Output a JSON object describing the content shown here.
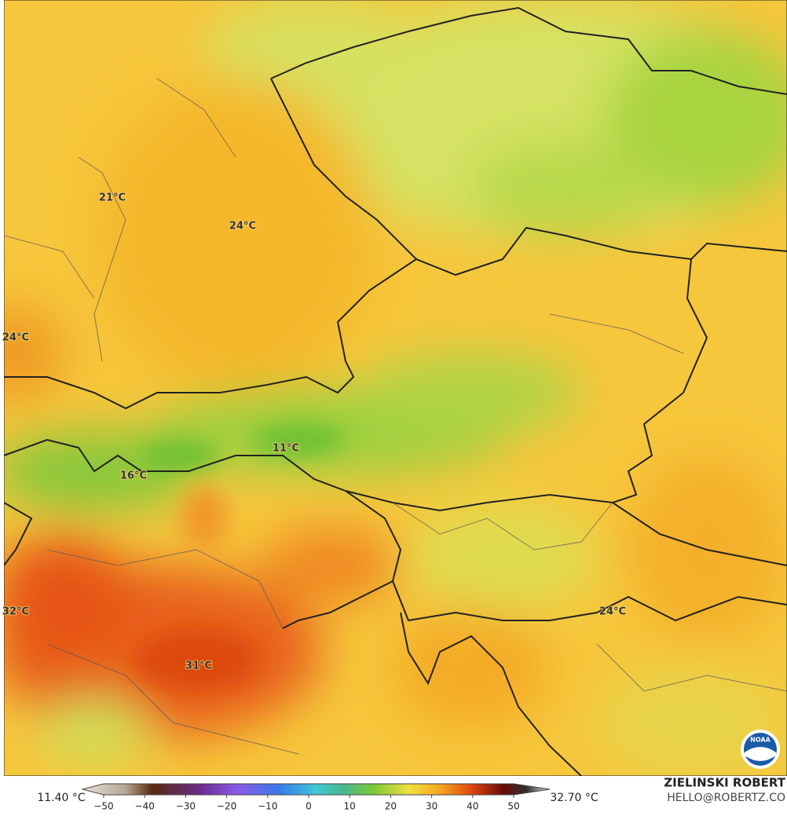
{
  "map": {
    "labels": [
      "21°C",
      "24°C",
      "24°C",
      "11°C",
      "16°C",
      "32°C",
      "31°C",
      "24°C"
    ],
    "colorbar": {
      "min_label": "11.40 °C",
      "max_label": "32.70 °C",
      "ticks": [
        "−50",
        "−40",
        "−30",
        "−20",
        "−10",
        "0",
        "10",
        "20",
        "30",
        "40",
        "50"
      ]
    },
    "credit": {
      "name": "ZIELINSKI ROBERT",
      "contact": "HELLO@ROBERTZ.CO"
    },
    "logo": "NOAA"
  }
}
